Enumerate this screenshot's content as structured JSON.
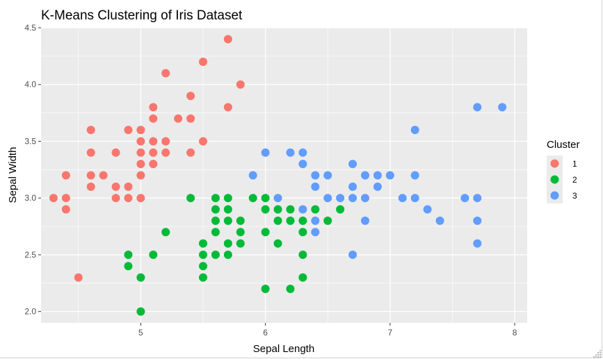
{
  "chart_data": {
    "type": "scatter",
    "title": "K-Means Clustering of Iris Dataset",
    "xlabel": "Sepal Length",
    "ylabel": "Sepal Width",
    "xlim": [
      4.2,
      8.1
    ],
    "ylim": [
      1.9,
      4.5
    ],
    "xticks": [
      5,
      6,
      7,
      8
    ],
    "xtick_labels": [
      "5",
      "6",
      "7",
      "8"
    ],
    "yticks": [
      2.0,
      2.5,
      3.0,
      3.5,
      4.0,
      4.5
    ],
    "ytick_labels": [
      "2.0",
      "2.5",
      "3.0",
      "3.5",
      "4.0",
      "4.5"
    ],
    "grid": true,
    "legend": {
      "title": "Cluster",
      "placement": "right"
    },
    "series": [
      {
        "name": "1",
        "color": "#F8766D",
        "points": [
          [
            4.3,
            3.0
          ],
          [
            4.4,
            3.2
          ],
          [
            4.4,
            3.0
          ],
          [
            4.4,
            2.9
          ],
          [
            4.5,
            2.3
          ],
          [
            4.6,
            3.6
          ],
          [
            4.6,
            3.4
          ],
          [
            4.6,
            3.2
          ],
          [
            4.6,
            3.1
          ],
          [
            4.7,
            3.2
          ],
          [
            4.8,
            3.4
          ],
          [
            4.8,
            3.1
          ],
          [
            4.8,
            3.0
          ],
          [
            4.9,
            3.6
          ],
          [
            4.9,
            3.1
          ],
          [
            4.9,
            3.0
          ],
          [
            5.0,
            3.6
          ],
          [
            5.0,
            3.5
          ],
          [
            5.0,
            3.4
          ],
          [
            5.0,
            3.3
          ],
          [
            5.0,
            3.2
          ],
          [
            5.0,
            3.0
          ],
          [
            5.1,
            3.8
          ],
          [
            5.1,
            3.7
          ],
          [
            5.1,
            3.5
          ],
          [
            5.1,
            3.4
          ],
          [
            5.1,
            3.3
          ],
          [
            5.2,
            4.1
          ],
          [
            5.2,
            3.5
          ],
          [
            5.2,
            3.4
          ],
          [
            5.3,
            3.7
          ],
          [
            5.4,
            3.9
          ],
          [
            5.4,
            3.7
          ],
          [
            5.4,
            3.4
          ],
          [
            5.5,
            4.2
          ],
          [
            5.5,
            3.5
          ],
          [
            5.7,
            4.4
          ],
          [
            5.7,
            3.8
          ],
          [
            5.8,
            4.0
          ]
        ]
      },
      {
        "name": "2",
        "color": "#00BA38",
        "points": [
          [
            4.9,
            2.5
          ],
          [
            4.9,
            2.4
          ],
          [
            5.0,
            2.3
          ],
          [
            5.0,
            2.0
          ],
          [
            5.1,
            2.5
          ],
          [
            5.2,
            2.7
          ],
          [
            5.4,
            3.0
          ],
          [
            5.5,
            2.6
          ],
          [
            5.5,
            2.5
          ],
          [
            5.5,
            2.4
          ],
          [
            5.5,
            2.3
          ],
          [
            5.6,
            3.0
          ],
          [
            5.6,
            2.9
          ],
          [
            5.6,
            2.8
          ],
          [
            5.6,
            2.7
          ],
          [
            5.6,
            2.5
          ],
          [
            5.7,
            3.0
          ],
          [
            5.7,
            2.9
          ],
          [
            5.7,
            2.8
          ],
          [
            5.7,
            2.6
          ],
          [
            5.7,
            2.5
          ],
          [
            5.8,
            2.8
          ],
          [
            5.8,
            2.7
          ],
          [
            5.8,
            2.6
          ],
          [
            5.9,
            3.0
          ],
          [
            6.0,
            3.0
          ],
          [
            6.0,
            2.9
          ],
          [
            6.0,
            2.7
          ],
          [
            6.0,
            2.2
          ],
          [
            6.1,
            2.9
          ],
          [
            6.1,
            2.8
          ],
          [
            6.1,
            2.6
          ],
          [
            6.2,
            2.9
          ],
          [
            6.2,
            2.8
          ],
          [
            6.2,
            2.2
          ],
          [
            6.3,
            2.8
          ],
          [
            6.3,
            2.7
          ],
          [
            6.3,
            2.5
          ],
          [
            6.3,
            2.3
          ],
          [
            6.4,
            2.9
          ],
          [
            6.5,
            2.8
          ],
          [
            6.6,
            2.9
          ]
        ]
      },
      {
        "name": "3",
        "color": "#619CFF",
        "points": [
          [
            5.9,
            3.2
          ],
          [
            6.0,
            3.4
          ],
          [
            6.1,
            3.0
          ],
          [
            6.2,
            3.4
          ],
          [
            6.3,
            3.4
          ],
          [
            6.3,
            3.3
          ],
          [
            6.3,
            2.9
          ],
          [
            6.4,
            3.2
          ],
          [
            6.4,
            3.1
          ],
          [
            6.4,
            2.8
          ],
          [
            6.4,
            2.7
          ],
          [
            6.5,
            3.2
          ],
          [
            6.5,
            3.0
          ],
          [
            6.6,
            3.0
          ],
          [
            6.7,
            3.3
          ],
          [
            6.7,
            3.1
          ],
          [
            6.7,
            3.0
          ],
          [
            6.7,
            2.5
          ],
          [
            6.8,
            3.2
          ],
          [
            6.8,
            3.0
          ],
          [
            6.8,
            2.8
          ],
          [
            6.9,
            3.2
          ],
          [
            6.9,
            3.1
          ],
          [
            7.0,
            3.2
          ],
          [
            7.1,
            3.0
          ],
          [
            7.2,
            3.6
          ],
          [
            7.2,
            3.2
          ],
          [
            7.2,
            3.0
          ],
          [
            7.3,
            2.9
          ],
          [
            7.4,
            2.8
          ],
          [
            7.6,
            3.0
          ],
          [
            7.7,
            3.8
          ],
          [
            7.7,
            3.0
          ],
          [
            7.7,
            2.8
          ],
          [
            7.7,
            2.6
          ],
          [
            7.9,
            3.8
          ]
        ]
      }
    ]
  }
}
